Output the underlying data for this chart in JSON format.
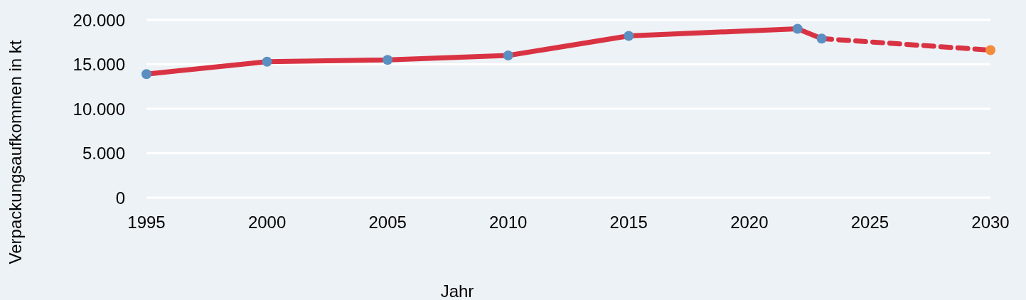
{
  "chart_data": {
    "type": "line",
    "xlabel": "Jahr",
    "ylabel": "Verpackungsaufkommen in kt",
    "xlim": [
      1995,
      2030
    ],
    "xticks": [
      1995,
      2000,
      2005,
      2010,
      2015,
      2020,
      2025,
      2030
    ],
    "ylim": [
      0,
      20000
    ],
    "yticks": [
      0,
      {
        "value": 5000,
        "label": "5.000"
      },
      {
        "value": 10000,
        "label": "10.000"
      },
      {
        "value": 15000,
        "label": "15.000"
      },
      {
        "value": 20000,
        "label": "20.000"
      }
    ],
    "grid": "y",
    "marker": "circle",
    "series": [
      {
        "color": "#d93343",
        "line_style": "solid",
        "colors": [
          "#5b8fc2",
          "#5b8fc2",
          "#5b8fc2",
          "#5b8fc2",
          "#5b8fc2",
          "#5b8fc2",
          "#5b8fc2"
        ],
        "x": [
          1995,
          2000,
          2005,
          2010,
          2015,
          2022,
          2023
        ],
        "values": [
          13900,
          15300,
          15500,
          16000,
          18200,
          19000,
          17900
        ]
      },
      {
        "color": "#d93343",
        "line_style": "dashed",
        "colors": [
          null,
          "#f28b3c"
        ],
        "x": [
          2023,
          2030
        ],
        "values": [
          17900,
          16600
        ]
      }
    ]
  }
}
